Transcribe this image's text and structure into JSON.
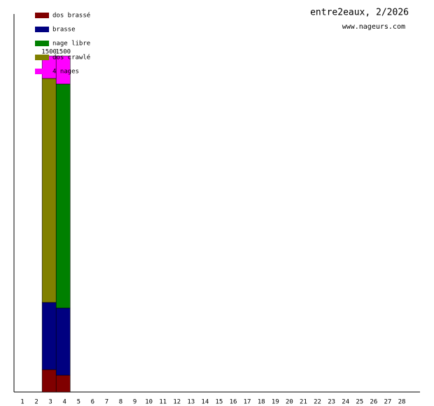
{
  "chart_data": {
    "type": "stacked-bar",
    "title": "entre2eaux, 2/2026",
    "subtitle": "www.nageurs.com",
    "categories": [
      "1",
      "2",
      "3",
      "4",
      "5",
      "6",
      "7",
      "8",
      "9",
      "10",
      "11",
      "12",
      "13",
      "14",
      "15",
      "16",
      "17",
      "18",
      "19",
      "20",
      "21",
      "22",
      "23",
      "24",
      "25",
      "26",
      "27",
      "28"
    ],
    "series": [
      {
        "name": "dos brassé",
        "color": "#800000",
        "values": [
          null,
          null,
          100,
          75,
          null,
          null,
          null,
          null,
          null,
          null,
          null,
          null,
          null,
          null,
          null,
          null,
          null,
          null,
          null,
          null,
          null,
          null,
          null,
          null,
          null,
          null,
          null,
          null
        ]
      },
      {
        "name": "brasse",
        "color": "#000080",
        "values": [
          null,
          null,
          300,
          300,
          null,
          null,
          null,
          null,
          null,
          null,
          null,
          null,
          null,
          null,
          null,
          null,
          null,
          null,
          null,
          null,
          null,
          null,
          null,
          null,
          null,
          null,
          null,
          null
        ]
      },
      {
        "name": "nage libre",
        "color": "#008000",
        "values": [
          null,
          null,
          null,
          1000,
          null,
          null,
          null,
          null,
          null,
          null,
          null,
          null,
          null,
          null,
          null,
          null,
          null,
          null,
          null,
          null,
          null,
          null,
          null,
          null,
          null,
          null,
          null,
          null
        ]
      },
      {
        "name": "dos crawlé",
        "color": "#808000",
        "values": [
          null,
          null,
          1000,
          null,
          null,
          null,
          null,
          null,
          null,
          null,
          null,
          null,
          null,
          null,
          null,
          null,
          null,
          null,
          null,
          null,
          null,
          null,
          null,
          null,
          null,
          null,
          null,
          null
        ]
      },
      {
        "name": "4 nages",
        "color": "#ff00ff",
        "values": [
          null,
          null,
          100,
          125,
          null,
          null,
          null,
          null,
          null,
          null,
          null,
          null,
          null,
          null,
          null,
          null,
          null,
          null,
          null,
          null,
          null,
          null,
          null,
          null,
          null,
          null,
          null,
          null
        ]
      }
    ],
    "totals": [
      null,
      null,
      1500,
      1500,
      null,
      null,
      null,
      null,
      null,
      null,
      null,
      null,
      null,
      null,
      null,
      null,
      null,
      null,
      null,
      null,
      null,
      null,
      null,
      null,
      null,
      null,
      null,
      null
    ],
    "ylim": [
      0,
      1687.5
    ]
  }
}
